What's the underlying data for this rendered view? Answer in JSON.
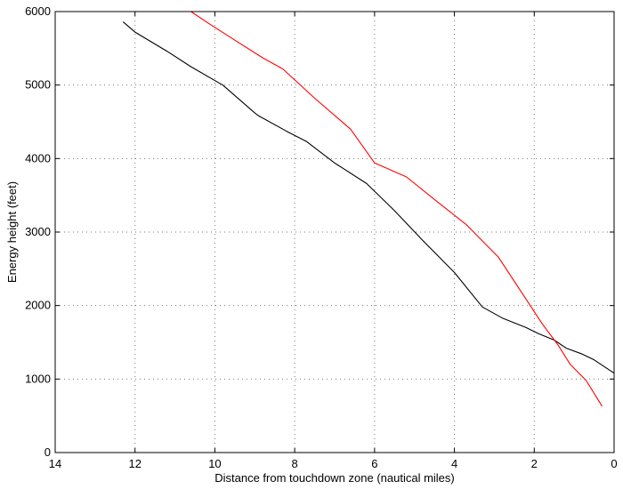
{
  "chart_data": {
    "type": "line",
    "title": "",
    "xlabel": "Distance from touchdown zone (nautical miles)",
    "ylabel": "Energy height (feet)",
    "xlim": [
      14,
      0
    ],
    "ylim": [
      0,
      6000
    ],
    "x_reversed": true,
    "grid": true,
    "xticks": [
      14,
      12,
      10,
      8,
      6,
      4,
      2,
      0
    ],
    "yticks": [
      0,
      1000,
      2000,
      3000,
      4000,
      5000,
      6000
    ],
    "series": [
      {
        "color": "#000000",
        "x": [
          12.3,
          12.0,
          11.2,
          10.6,
          9.9,
          9.8,
          9.0,
          8.9,
          8.2,
          7.7,
          7.0,
          6.2,
          5.5,
          4.8,
          4.0,
          3.3,
          2.8,
          2.2,
          1.9,
          1.5,
          1.2,
          0.8,
          0.5,
          0.0
        ],
        "y": [
          5860,
          5720,
          5460,
          5250,
          5030,
          5000,
          4620,
          4580,
          4370,
          4230,
          3940,
          3660,
          3290,
          2890,
          2450,
          1980,
          1830,
          1700,
          1620,
          1530,
          1420,
          1340,
          1260,
          1080
        ]
      },
      {
        "color": "#ff0000",
        "x": [
          10.6,
          10.1,
          9.5,
          8.8,
          8.3,
          7.5,
          6.6,
          6.0,
          5.2,
          4.4,
          3.7,
          2.9,
          2.1,
          1.8,
          1.4,
          1.1,
          0.7,
          0.3
        ],
        "y": [
          6000,
          5820,
          5610,
          5370,
          5220,
          4820,
          4400,
          3940,
          3750,
          3400,
          3100,
          2660,
          2000,
          1750,
          1460,
          1200,
          980,
          630
        ]
      }
    ]
  }
}
